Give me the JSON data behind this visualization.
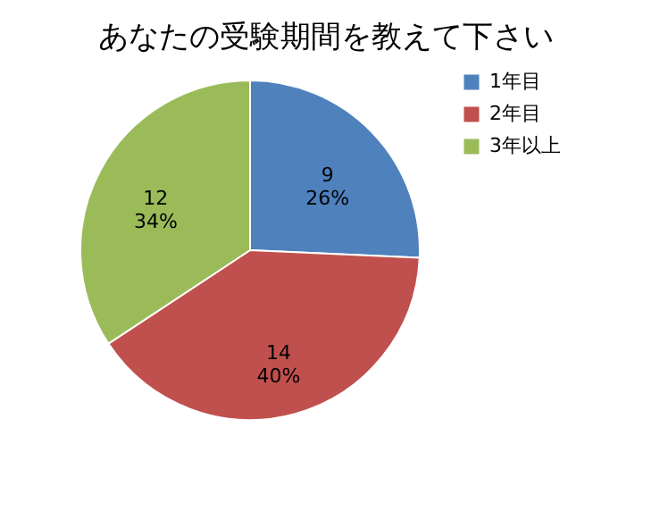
{
  "chart_data": {
    "type": "pie",
    "title": "あなたの受験期間を教えて下さい",
    "categories": [
      "1年目",
      "2年目",
      "3年以上"
    ],
    "values": [
      9,
      14,
      12
    ],
    "colors": [
      "#4f81bd",
      "#c0504d",
      "#9bbb59"
    ],
    "value_labels": [
      "9\n26%",
      "14\n40%",
      "12\n34%"
    ],
    "legend": "right"
  }
}
